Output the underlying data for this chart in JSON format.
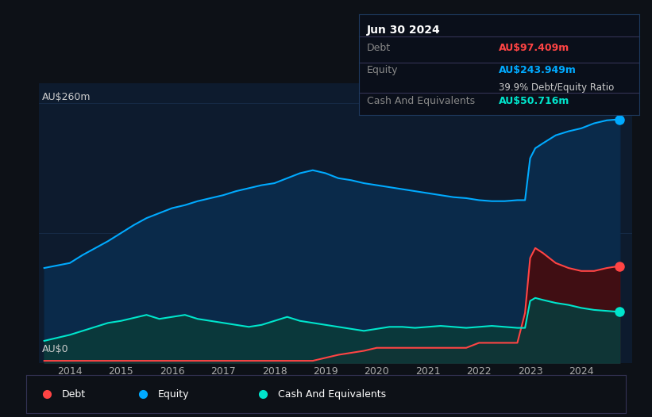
{
  "bg_color": "#0d1117",
  "chart_bg": "#0d1b2e",
  "grid_color": "#1e3a5f",
  "equity_color": "#00aaff",
  "debt_color": "#ff4444",
  "cash_color": "#00e5cc",
  "equity_fill": "#0a2a4a",
  "debt_fill": "#4a0a0a",
  "cash_fill": "#0a3a3a",
  "tooltip_bg": "#0a0f1a",
  "tooltip_border": "#1e3a5f",
  "ylabel_text": "AU$260m",
  "ylabel_bottom": "AU$0",
  "years_labels": [
    "2014",
    "2015",
    "2016",
    "2017",
    "2018",
    "2019",
    "2020",
    "2021",
    "2022",
    "2023",
    "2024"
  ],
  "tooltip_date": "Jun 30 2024",
  "tooltip_debt_label": "Debt",
  "tooltip_debt_value": "AU$97.409m",
  "tooltip_equity_label": "Equity",
  "tooltip_equity_value": "AU$243.949m",
  "tooltip_ratio": "39.9% Debt/Equity Ratio",
  "tooltip_cash_label": "Cash And Equivalents",
  "tooltip_cash_value": "AU$50.716m",
  "legend_items": [
    "Debt",
    "Equity",
    "Cash And Equivalents"
  ],
  "legend_colors": [
    "#ff4444",
    "#00aaff",
    "#00e5cc"
  ],
  "equity_data": {
    "x": [
      2013.5,
      2014.0,
      2014.25,
      2014.5,
      2014.75,
      2015.0,
      2015.25,
      2015.5,
      2015.75,
      2016.0,
      2016.25,
      2016.5,
      2016.75,
      2017.0,
      2017.25,
      2017.5,
      2017.75,
      2018.0,
      2018.25,
      2018.5,
      2018.75,
      2019.0,
      2019.25,
      2019.5,
      2019.75,
      2020.0,
      2020.25,
      2020.5,
      2020.75,
      2021.0,
      2021.25,
      2021.5,
      2021.75,
      2022.0,
      2022.25,
      2022.5,
      2022.75,
      2022.9,
      2023.0,
      2023.1,
      2023.25,
      2023.5,
      2023.75,
      2024.0,
      2024.25,
      2024.5,
      2024.75
    ],
    "y": [
      95,
      100,
      108,
      115,
      122,
      130,
      138,
      145,
      150,
      155,
      158,
      162,
      165,
      168,
      172,
      175,
      178,
      180,
      185,
      190,
      193,
      190,
      185,
      183,
      180,
      178,
      176,
      174,
      172,
      170,
      168,
      166,
      165,
      163,
      162,
      162,
      163,
      163,
      205,
      215,
      220,
      228,
      232,
      235,
      240,
      243,
      244
    ]
  },
  "debt_data": {
    "x": [
      2013.5,
      2014.0,
      2014.25,
      2014.5,
      2014.75,
      2015.0,
      2015.25,
      2015.5,
      2015.75,
      2016.0,
      2016.25,
      2016.5,
      2016.75,
      2017.0,
      2017.25,
      2017.5,
      2017.75,
      2018.0,
      2018.25,
      2018.5,
      2018.75,
      2019.0,
      2019.25,
      2019.5,
      2019.75,
      2020.0,
      2020.25,
      2020.5,
      2020.75,
      2021.0,
      2021.25,
      2021.5,
      2021.75,
      2022.0,
      2022.25,
      2022.5,
      2022.75,
      2022.9,
      2023.0,
      2023.1,
      2023.25,
      2023.5,
      2023.75,
      2024.0,
      2024.25,
      2024.5,
      2024.75
    ],
    "y": [
      2,
      2,
      2,
      2,
      2,
      2,
      2,
      2,
      2,
      2,
      2,
      2,
      2,
      2,
      2,
      2,
      2,
      2,
      2,
      2,
      2,
      5,
      8,
      10,
      12,
      15,
      15,
      15,
      15,
      15,
      15,
      15,
      15,
      20,
      20,
      20,
      20,
      50,
      105,
      115,
      110,
      100,
      95,
      92,
      92,
      95,
      97
    ]
  },
  "cash_data": {
    "x": [
      2013.5,
      2014.0,
      2014.25,
      2014.5,
      2014.75,
      2015.0,
      2015.25,
      2015.5,
      2015.75,
      2016.0,
      2016.25,
      2016.5,
      2016.75,
      2017.0,
      2017.25,
      2017.5,
      2017.75,
      2018.0,
      2018.25,
      2018.5,
      2018.75,
      2019.0,
      2019.25,
      2019.5,
      2019.75,
      2020.0,
      2020.25,
      2020.5,
      2020.75,
      2021.0,
      2021.25,
      2021.5,
      2021.75,
      2022.0,
      2022.25,
      2022.5,
      2022.75,
      2022.9,
      2023.0,
      2023.1,
      2023.25,
      2023.5,
      2023.75,
      2024.0,
      2024.25,
      2024.5,
      2024.75
    ],
    "y": [
      22,
      28,
      32,
      36,
      40,
      42,
      45,
      48,
      44,
      46,
      48,
      44,
      42,
      40,
      38,
      36,
      38,
      42,
      46,
      42,
      40,
      38,
      36,
      34,
      32,
      34,
      36,
      36,
      35,
      36,
      37,
      36,
      35,
      36,
      37,
      36,
      35,
      35,
      62,
      65,
      63,
      60,
      58,
      55,
      53,
      52,
      51
    ]
  },
  "ylim": [
    0,
    280
  ],
  "xlim": [
    2013.4,
    2025.0
  ],
  "marker_dot_size": 8
}
